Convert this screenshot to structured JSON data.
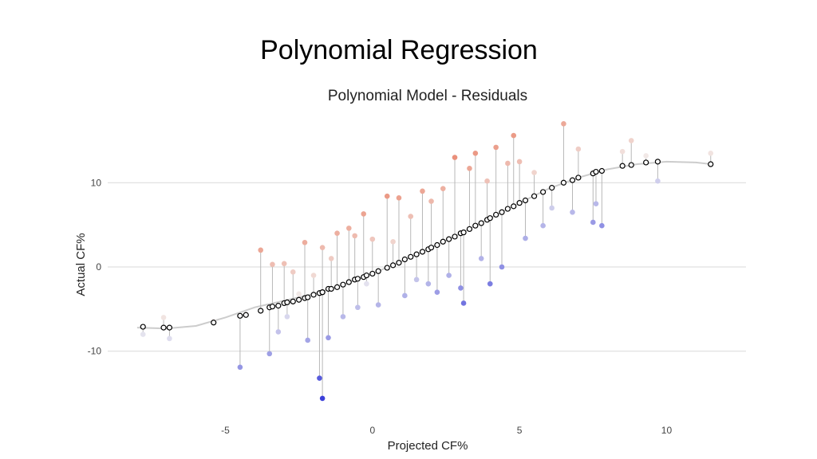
{
  "slide": {
    "title": "Polynomial Regression"
  },
  "chart_data": {
    "type": "scatter",
    "title": "Polynomial Model - Residuals",
    "xlabel": "Projected CF%",
    "ylabel": "Actual CF%",
    "xlim": [
      -9,
      12.7
    ],
    "ylim": [
      -17.5,
      17.5
    ],
    "x_ticks": [
      -5,
      0,
      5,
      10
    ],
    "x_tick_labels": [
      "-5",
      "0",
      "5",
      "10"
    ],
    "y_ticks": [
      -10,
      0,
      10
    ],
    "y_tick_labels": [
      "-10",
      "0",
      "10"
    ],
    "grid": "horizontal",
    "colors": {
      "positive": "#e8765a",
      "neutral": "#f2f0f0",
      "negative": "#3b3fd9",
      "fit": "#cccccc",
      "predicted": "#000000"
    },
    "fit_curve": {
      "x": [
        -8,
        -7,
        -6,
        -5,
        -4,
        -3,
        -2,
        -1,
        0,
        1,
        2,
        3,
        4,
        5,
        6,
        7,
        8,
        9,
        10,
        11,
        11.5
      ],
      "y": [
        -7.2,
        -7.3,
        -7.0,
        -6.0,
        -4.8,
        -4.0,
        -3.2,
        -2.1,
        -0.8,
        0.7,
        2.3,
        4.0,
        5.8,
        7.6,
        9.3,
        10.6,
        11.6,
        12.2,
        12.5,
        12.4,
        12.2
      ]
    },
    "series": [
      {
        "name": "",
        "points": [
          {
            "x": -7.8,
            "predicted": -7.1,
            "actual": -8.0
          },
          {
            "x": -7.1,
            "predicted": -7.2,
            "actual": -6.0
          },
          {
            "x": -6.9,
            "predicted": -7.2,
            "actual": -8.5
          },
          {
            "x": -5.4,
            "predicted": -6.6,
            "actual": -6.4
          },
          {
            "x": -4.5,
            "predicted": -5.8,
            "actual": -11.9
          },
          {
            "x": -4.3,
            "predicted": -5.7,
            "actual": -5.6
          },
          {
            "x": -3.8,
            "predicted": -5.2,
            "actual": 2.0
          },
          {
            "x": -3.5,
            "predicted": -4.8,
            "actual": -10.3
          },
          {
            "x": -3.4,
            "predicted": -4.7,
            "actual": 0.3
          },
          {
            "x": -3.2,
            "predicted": -4.6,
            "actual": -7.7
          },
          {
            "x": -3.0,
            "predicted": -4.3,
            "actual": 0.4
          },
          {
            "x": -2.9,
            "predicted": -4.2,
            "actual": -5.9
          },
          {
            "x": -2.7,
            "predicted": -4.1,
            "actual": -0.6
          },
          {
            "x": -2.5,
            "predicted": -3.9,
            "actual": -3.2
          },
          {
            "x": -2.3,
            "predicted": -3.7,
            "actual": 2.9
          },
          {
            "x": -2.2,
            "predicted": -3.6,
            "actual": -8.7
          },
          {
            "x": -2.0,
            "predicted": -3.3,
            "actual": -1.0
          },
          {
            "x": -1.8,
            "predicted": -3.1,
            "actual": -13.2
          },
          {
            "x": -1.7,
            "predicted": -3.0,
            "actual": -15.6
          },
          {
            "x": -1.7,
            "predicted": -3.0,
            "actual": 2.3
          },
          {
            "x": -1.5,
            "predicted": -2.6,
            "actual": -8.4
          },
          {
            "x": -1.4,
            "predicted": -2.6,
            "actual": 1.0
          },
          {
            "x": -1.2,
            "predicted": -2.4,
            "actual": 4.0
          },
          {
            "x": -1.0,
            "predicted": -2.1,
            "actual": -5.9
          },
          {
            "x": -0.8,
            "predicted": -1.8,
            "actual": 4.6
          },
          {
            "x": -0.6,
            "predicted": -1.5,
            "actual": 3.7
          },
          {
            "x": -0.5,
            "predicted": -1.4,
            "actual": -4.8
          },
          {
            "x": -0.3,
            "predicted": -1.2,
            "actual": 6.3
          },
          {
            "x": -0.2,
            "predicted": -1.0,
            "actual": -2.0
          },
          {
            "x": 0.0,
            "predicted": -0.8,
            "actual": 3.3
          },
          {
            "x": 0.2,
            "predicted": -0.5,
            "actual": -4.5
          },
          {
            "x": 0.5,
            "predicted": -0.1,
            "actual": 8.4
          },
          {
            "x": 0.7,
            "predicted": 0.2,
            "actual": 3.0
          },
          {
            "x": 0.9,
            "predicted": 0.5,
            "actual": 8.2
          },
          {
            "x": 1.1,
            "predicted": 0.9,
            "actual": -3.4
          },
          {
            "x": 1.3,
            "predicted": 1.2,
            "actual": 6.0
          },
          {
            "x": 1.5,
            "predicted": 1.5,
            "actual": -1.5
          },
          {
            "x": 1.7,
            "predicted": 1.8,
            "actual": 9.0
          },
          {
            "x": 1.9,
            "predicted": 2.1,
            "actual": -2.0
          },
          {
            "x": 2.0,
            "predicted": 2.3,
            "actual": 7.8
          },
          {
            "x": 2.2,
            "predicted": 2.6,
            "actual": -3.0
          },
          {
            "x": 2.4,
            "predicted": 3.0,
            "actual": 9.3
          },
          {
            "x": 2.6,
            "predicted": 3.3,
            "actual": -1.0
          },
          {
            "x": 2.8,
            "predicted": 3.6,
            "actual": 13.0
          },
          {
            "x": 3.0,
            "predicted": 4.0,
            "actual": -2.5
          },
          {
            "x": 3.1,
            "predicted": 4.1,
            "actual": -4.3
          },
          {
            "x": 3.3,
            "predicted": 4.5,
            "actual": 11.7
          },
          {
            "x": 3.5,
            "predicted": 4.9,
            "actual": 13.5
          },
          {
            "x": 3.7,
            "predicted": 5.2,
            "actual": 1.0
          },
          {
            "x": 3.9,
            "predicted": 5.6,
            "actual": 10.2
          },
          {
            "x": 4.0,
            "predicted": 5.8,
            "actual": -2.0
          },
          {
            "x": 4.2,
            "predicted": 6.2,
            "actual": 14.2
          },
          {
            "x": 4.4,
            "predicted": 6.5,
            "actual": 0.0
          },
          {
            "x": 4.6,
            "predicted": 6.9,
            "actual": 12.3
          },
          {
            "x": 4.8,
            "predicted": 7.2,
            "actual": 15.6
          },
          {
            "x": 5.0,
            "predicted": 7.6,
            "actual": 12.5
          },
          {
            "x": 5.2,
            "predicted": 7.9,
            "actual": 3.4
          },
          {
            "x": 5.5,
            "predicted": 8.4,
            "actual": 11.2
          },
          {
            "x": 5.8,
            "predicted": 8.9,
            "actual": 4.9
          },
          {
            "x": 6.1,
            "predicted": 9.4,
            "actual": 7.0
          },
          {
            "x": 6.5,
            "predicted": 10.0,
            "actual": 17.0
          },
          {
            "x": 6.8,
            "predicted": 10.3,
            "actual": 6.5
          },
          {
            "x": 7.0,
            "predicted": 10.6,
            "actual": 14.0
          },
          {
            "x": 7.5,
            "predicted": 11.1,
            "actual": 5.3
          },
          {
            "x": 7.6,
            "predicted": 11.3,
            "actual": 7.5
          },
          {
            "x": 7.8,
            "predicted": 11.4,
            "actual": 4.9
          },
          {
            "x": 8.5,
            "predicted": 12.0,
            "actual": 13.7
          },
          {
            "x": 8.8,
            "predicted": 12.1,
            "actual": 15.0
          },
          {
            "x": 9.3,
            "predicted": 12.4,
            "actual": 13.2
          },
          {
            "x": 9.7,
            "predicted": 12.5,
            "actual": 10.2
          },
          {
            "x": 11.5,
            "predicted": 12.2,
            "actual": 13.5
          }
        ]
      }
    ]
  }
}
